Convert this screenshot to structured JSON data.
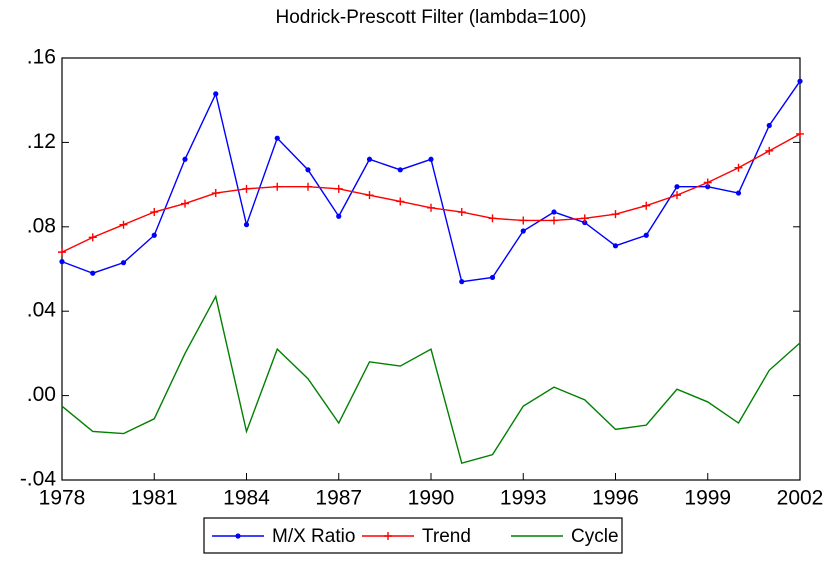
{
  "chart_data": {
    "type": "line",
    "title": "Hodrick-Prescott Filter (lambda=100)",
    "x": [
      1978,
      1979,
      1980,
      1981,
      1982,
      1983,
      1984,
      1985,
      1986,
      1987,
      1988,
      1989,
      1990,
      1991,
      1992,
      1993,
      1994,
      1995,
      1996,
      1997,
      1998,
      1999,
      2000,
      2001,
      2002
    ],
    "xlim": [
      1978,
      2002
    ],
    "xticks": [
      1978,
      1981,
      1984,
      1987,
      1990,
      1993,
      1996,
      1999,
      2002
    ],
    "ylim": [
      -0.04,
      0.16
    ],
    "yticks": [
      {
        "value": -0.04,
        "label": "-.04"
      },
      {
        "value": 0,
        "label": ".00"
      },
      {
        "value": 0.04,
        "label": ".04"
      },
      {
        "value": 0.08,
        "label": ".08"
      },
      {
        "value": 0.12,
        "label": ".12"
      },
      {
        "value": 0.16,
        "label": ".16"
      }
    ],
    "legend": "bottom",
    "series": [
      {
        "name": "M/X Ratio",
        "color": "#0000ff",
        "marker": "dot",
        "values": [
          0.0635,
          0.058,
          0.063,
          0.076,
          0.112,
          0.143,
          0.081,
          0.122,
          0.107,
          0.085,
          0.112,
          0.107,
          0.112,
          0.054,
          0.056,
          0.078,
          0.087,
          0.082,
          0.071,
          0.076,
          0.099,
          0.099,
          0.096,
          0.128,
          0.149
        ]
      },
      {
        "name": "Trend",
        "color": "#ff0000",
        "marker": "plus",
        "values": [
          0.068,
          0.075,
          0.081,
          0.087,
          0.091,
          0.096,
          0.098,
          0.099,
          0.099,
          0.098,
          0.095,
          0.092,
          0.089,
          0.087,
          0.084,
          0.083,
          0.083,
          0.084,
          0.086,
          0.09,
          0.095,
          0.101,
          0.108,
          0.116,
          0.124
        ]
      },
      {
        "name": "Cycle",
        "color": "#008000",
        "marker": "none",
        "values": [
          -0.005,
          -0.017,
          -0.018,
          -0.011,
          0.02,
          0.047,
          -0.017,
          0.022,
          0.008,
          -0.013,
          0.016,
          0.014,
          0.022,
          -0.032,
          -0.028,
          -0.005,
          0.004,
          -0.002,
          -0.016,
          -0.014,
          0.003,
          -0.003,
          -0.013,
          0.012,
          0.025
        ]
      }
    ]
  }
}
